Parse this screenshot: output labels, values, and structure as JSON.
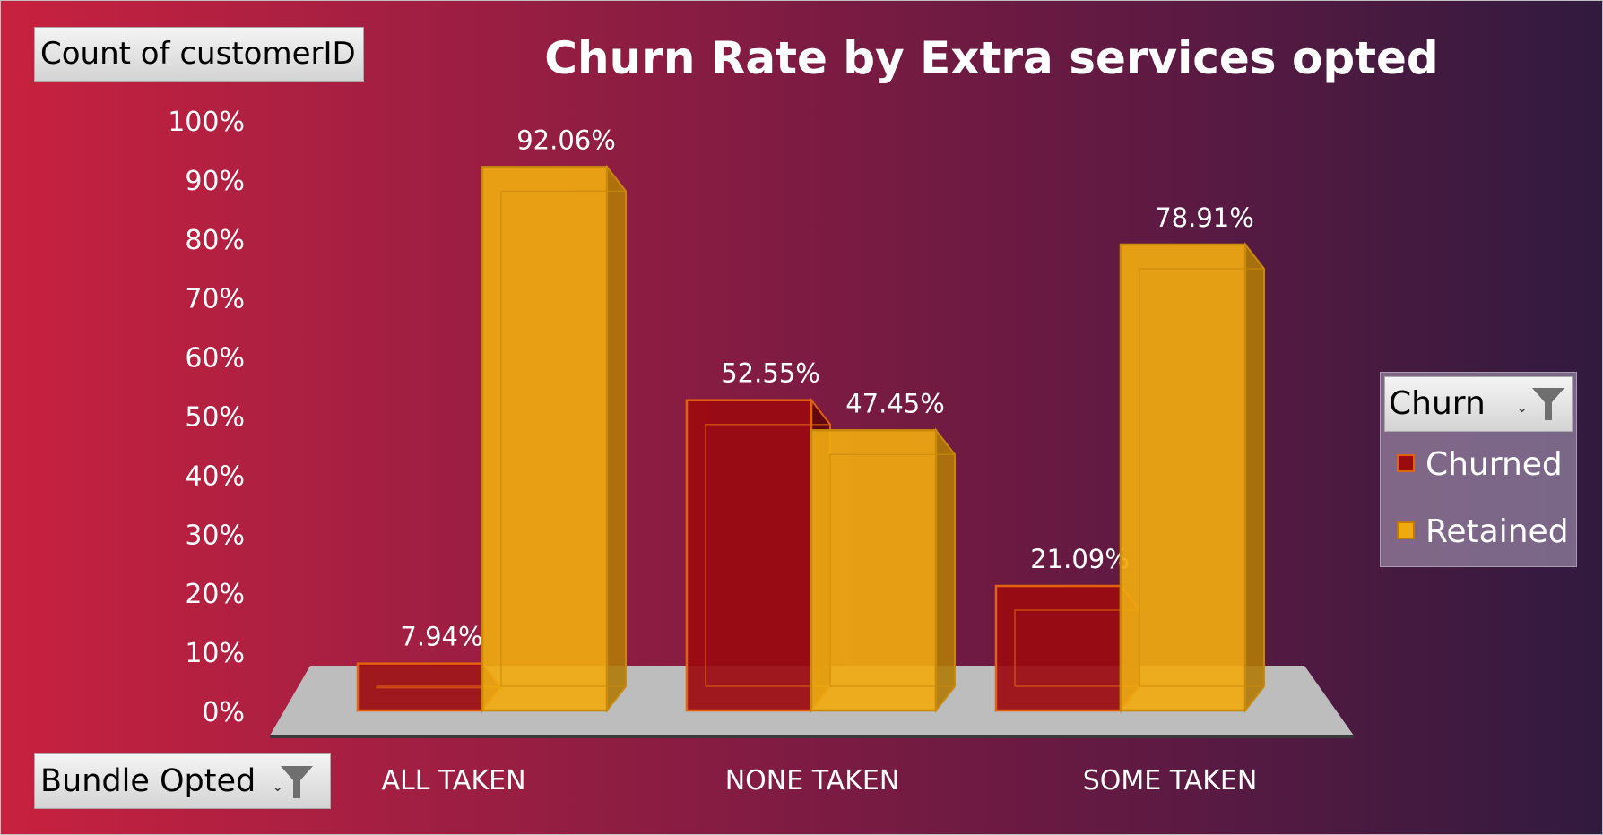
{
  "pivot": {
    "value_field": "Count of customerID",
    "axis_field": "Bundle Opted",
    "legend_field": "Churn"
  },
  "chart_data": {
    "type": "bar",
    "title": "Churn Rate by Extra services opted",
    "categories": [
      "ALL TAKEN",
      "NONE TAKEN",
      "SOME TAKEN"
    ],
    "series": [
      {
        "name": "Churned",
        "color": "#9b0a10",
        "values": [
          7.94,
          52.55,
          21.09
        ],
        "labels": [
          "7.94%",
          "52.55%",
          "21.09%"
        ]
      },
      {
        "name": "Retained",
        "color": "#f0aa10",
        "values": [
          92.06,
          47.45,
          78.91
        ],
        "labels": [
          "92.06%",
          "47.45%",
          "78.91%"
        ]
      }
    ],
    "y_ticks": [
      "0%",
      "10%",
      "20%",
      "30%",
      "40%",
      "50%",
      "60%",
      "70%",
      "80%",
      "90%",
      "100%"
    ],
    "ylim": [
      0,
      100
    ],
    "legend_position": "right",
    "style": "3d-clustered-column",
    "grid": false
  }
}
